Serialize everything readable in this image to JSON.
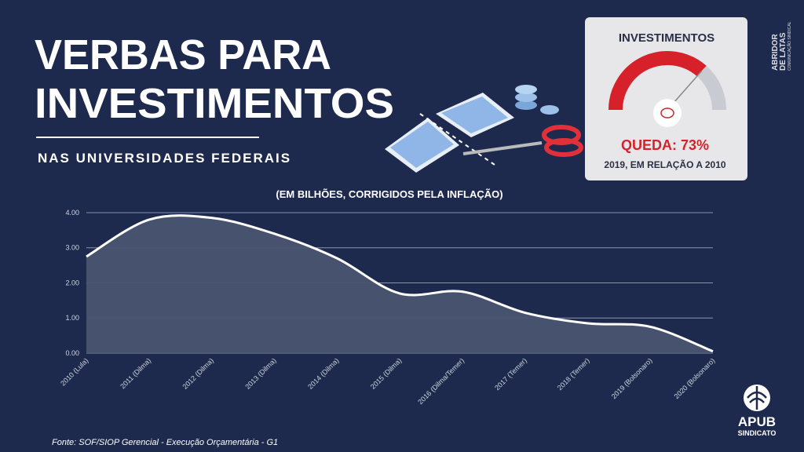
{
  "header": {
    "title_lines": [
      "VERBAS PARA",
      "INVESTIMENTOS"
    ],
    "subtitle": "NAS UNIVERSIDADES FEDERAIS"
  },
  "gauge": {
    "heading": "INVESTIMENTOS",
    "value": 73,
    "label": "QUEDA: 73%",
    "note": "2019, EM RELAÇÃO A 2010"
  },
  "chart_data": {
    "type": "area",
    "subtitle": "(EM BILHÕES, CORRIGIDOS PELA INFLAÇÃO)",
    "categories": [
      "2010 (Lula)",
      "2011 (Dilma)",
      "2012 (Dilma)",
      "2013 (Dilma)",
      "2014 (Dilma)",
      "2015 (Dilma)",
      "2016 (Dilma/Temer)",
      "2017 (Temer)",
      "2018 (Temer)",
      "2019 (Bolsonaro)",
      "2020 (Bolsonaro)"
    ],
    "values": [
      2.75,
      3.8,
      3.85,
      3.4,
      2.7,
      1.7,
      1.75,
      1.15,
      0.85,
      0.75,
      0.05
    ],
    "color": "#ffffff",
    "fill": "#4a5471",
    "ylim": [
      0,
      4.2
    ],
    "yticks": [
      {
        "value": 0,
        "label": "0.00"
      },
      {
        "value": 1,
        "label": "1.00"
      },
      {
        "value": 2,
        "label": "2.00"
      },
      {
        "value": 3,
        "label": "3.00"
      },
      {
        "value": 4,
        "label": "4.00"
      }
    ],
    "grid": true
  },
  "source": "Fonte: SOF/SIOP Gerencial - Execução Orçamentária - G1",
  "logos": {
    "agency": [
      "ABRIDOR",
      "DE LATAS",
      "COMUNICAÇÃO SINDICAL"
    ],
    "union": [
      "APUB",
      "SINDICATO"
    ]
  }
}
